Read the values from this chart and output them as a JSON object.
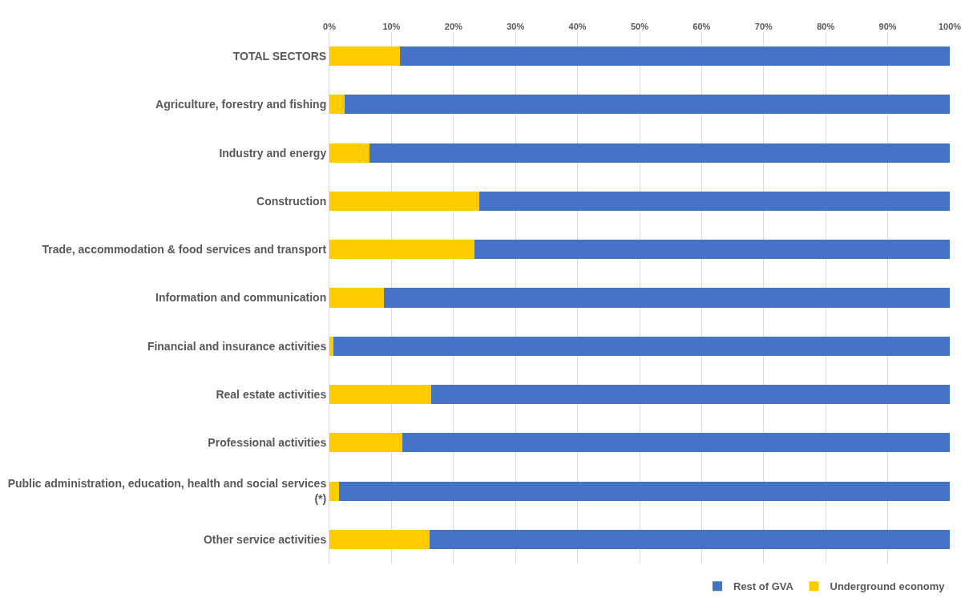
{
  "chart_data": {
    "type": "bar",
    "orientation": "horizontal",
    "stacked": true,
    "categories": [
      "TOTAL SECTORS",
      "Agriculture, forestry and fishing",
      "Industry and energy",
      "Construction",
      "Trade, accommodation & food services and transport",
      "Information and communication",
      "Financial and insurance activities",
      "Real estate activities",
      "Professional activities",
      "Public administration, education, health and social services (*)",
      "Other service activities"
    ],
    "series": [
      {
        "name": "Underground economy",
        "color": "#ffcc00",
        "values": [
          11.4,
          2.5,
          6.5,
          24.2,
          23.4,
          8.8,
          0.6,
          16.4,
          11.7,
          1.5,
          16.2
        ]
      },
      {
        "name": "Rest of GVA",
        "color": "#4472c4",
        "values": [
          88.6,
          97.5,
          93.5,
          75.8,
          76.6,
          91.2,
          99.4,
          83.6,
          88.3,
          98.5,
          83.8
        ]
      }
    ],
    "xlim": [
      0,
      100
    ],
    "xticks": [
      {
        "value": 0,
        "label": "0%"
      },
      {
        "value": 10,
        "label": "10%"
      },
      {
        "value": 20,
        "label": "20%"
      },
      {
        "value": 30,
        "label": "30%"
      },
      {
        "value": 40,
        "label": "40%"
      },
      {
        "value": 50,
        "label": "50%"
      },
      {
        "value": 60,
        "label": "60%"
      },
      {
        "value": 70,
        "label": "70%"
      },
      {
        "value": 80,
        "label": "80%"
      },
      {
        "value": 90,
        "label": "90%"
      },
      {
        "value": 100,
        "label": "100%"
      }
    ],
    "grid": "x",
    "legend": "bottom right"
  }
}
